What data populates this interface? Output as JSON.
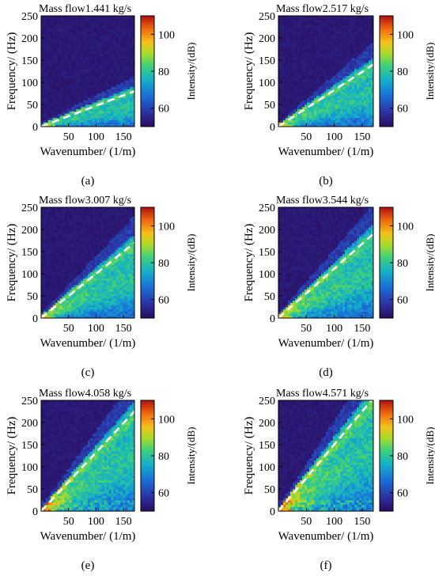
{
  "chart_data": [
    {
      "type": "heatmap",
      "title": "Mass flow1.441 kg/s",
      "subcaption": "(a)",
      "slope": 0.47,
      "xlabel": "Wavenumber/ (1/m)",
      "ylabel": "Frequency/ (Hz)",
      "colorbar_label": "Intensity/(dB)",
      "xlim": [
        0,
        170
      ],
      "ylim": [
        0,
        250
      ],
      "xticks": [
        50,
        100,
        150
      ],
      "yticks": [
        0,
        50,
        100,
        150,
        200,
        250
      ],
      "clim": [
        50,
        110
      ],
      "cticks": [
        60,
        80,
        100
      ],
      "dashed_line": {
        "x": [
          0,
          170
        ],
        "y": [
          0,
          80
        ]
      }
    },
    {
      "type": "heatmap",
      "title": "Mass flow2.517 kg/s",
      "subcaption": "(b)",
      "slope": 0.82,
      "xlabel": "Wavenumber/ (1/m)",
      "ylabel": "Frequency/ (Hz)",
      "colorbar_label": "Intensity/(dB)",
      "xlim": [
        0,
        170
      ],
      "ylim": [
        0,
        250
      ],
      "xticks": [
        50,
        100,
        150
      ],
      "yticks": [
        0,
        50,
        100,
        150,
        200,
        250
      ],
      "clim": [
        50,
        110
      ],
      "cticks": [
        60,
        80,
        100
      ],
      "dashed_line": {
        "x": [
          0,
          170
        ],
        "y": [
          0,
          140
        ]
      }
    },
    {
      "type": "heatmap",
      "title": "Mass flow3.007 kg/s",
      "subcaption": "(c)",
      "slope": 1.0,
      "xlabel": "Wavenumber/ (1/m)",
      "ylabel": "Frequency/ (Hz)",
      "colorbar_label": "Intensity/(dB)",
      "xlim": [
        0,
        170
      ],
      "ylim": [
        0,
        250
      ],
      "xticks": [
        50,
        100,
        150
      ],
      "yticks": [
        0,
        50,
        100,
        150,
        200,
        250
      ],
      "clim": [
        50,
        110
      ],
      "cticks": [
        60,
        80,
        100
      ],
      "dashed_line": {
        "x": [
          0,
          170
        ],
        "y": [
          0,
          170
        ]
      }
    },
    {
      "type": "heatmap",
      "title": "Mass flow3.544 kg/s",
      "subcaption": "(d)",
      "slope": 1.12,
      "xlabel": "Wavenumber/ (1/m)",
      "ylabel": "Frequency/ (Hz)",
      "colorbar_label": "Intensity/(dB)",
      "xlim": [
        0,
        170
      ],
      "ylim": [
        0,
        250
      ],
      "xticks": [
        50,
        100,
        150
      ],
      "yticks": [
        0,
        50,
        100,
        150,
        200,
        250
      ],
      "clim": [
        50,
        110
      ],
      "cticks": [
        60,
        80,
        100
      ],
      "dashed_line": {
        "x": [
          0,
          170
        ],
        "y": [
          0,
          190
        ]
      }
    },
    {
      "type": "heatmap",
      "title": "Mass flow4.058 kg/s",
      "subcaption": "(e)",
      "slope": 1.32,
      "xlabel": "Wavenumber/ (1/m)",
      "ylabel": "Frequency/ (Hz)",
      "colorbar_label": "Intensity/(dB)",
      "xlim": [
        0,
        170
      ],
      "ylim": [
        0,
        250
      ],
      "xticks": [
        50,
        100,
        150
      ],
      "yticks": [
        0,
        50,
        100,
        150,
        200,
        250
      ],
      "clim": [
        50,
        110
      ],
      "cticks": [
        60,
        80,
        100
      ],
      "dashed_line": {
        "x": [
          0,
          170
        ],
        "y": [
          0,
          225
        ]
      }
    },
    {
      "type": "heatmap",
      "title": "Mass flow4.571 kg/s",
      "subcaption": "(f)",
      "slope": 1.5,
      "xlabel": "Wavenumber/ (1/m)",
      "ylabel": "Frequency/ (Hz)",
      "colorbar_label": "Intensity/(dB)",
      "xlim": [
        0,
        170
      ],
      "ylim": [
        0,
        250
      ],
      "xticks": [
        50,
        100,
        150
      ],
      "yticks": [
        0,
        50,
        100,
        150,
        200,
        250
      ],
      "clim": [
        50,
        110
      ],
      "cticks": [
        60,
        80,
        100
      ],
      "dashed_line": {
        "x": [
          0,
          170
        ],
        "y": [
          0,
          255
        ]
      }
    }
  ]
}
